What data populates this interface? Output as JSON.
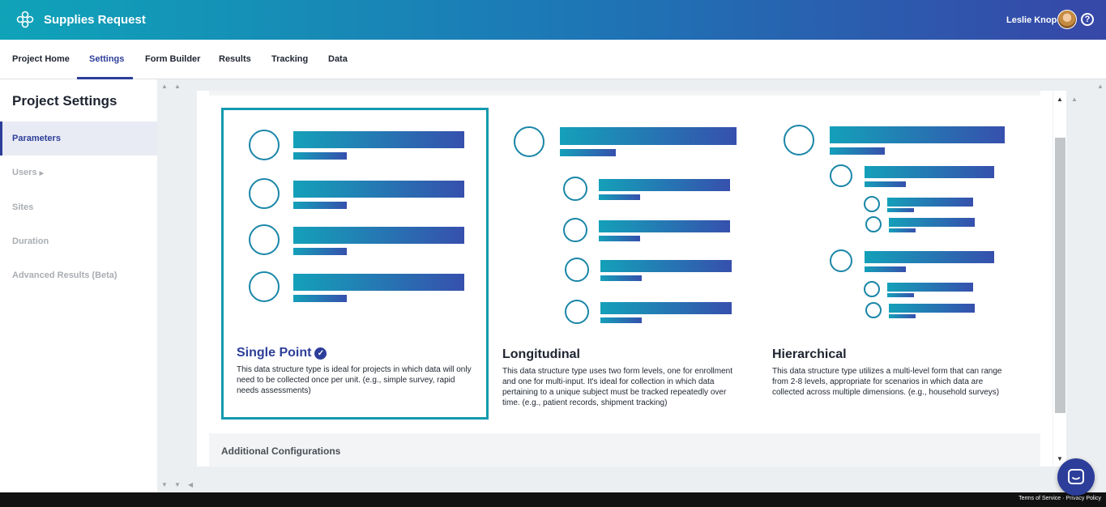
{
  "header": {
    "app_title": "Supplies Request",
    "user_name": "Leslie Knope",
    "help_glyph": "?"
  },
  "nav": {
    "tabs": [
      {
        "label": "Project Home"
      },
      {
        "label": "Settings",
        "active": true
      },
      {
        "label": "Form Builder"
      },
      {
        "label": "Results"
      },
      {
        "label": "Tracking"
      },
      {
        "label": "Data"
      }
    ]
  },
  "sidebar": {
    "title": "Project Settings",
    "items": [
      {
        "label": "Parameters",
        "active": true
      },
      {
        "label": "Users",
        "has_submenu": true
      },
      {
        "label": "Sites"
      },
      {
        "label": "Duration"
      },
      {
        "label": "Advanced Results (Beta)"
      }
    ]
  },
  "structures": [
    {
      "title": "Single Point",
      "selected": true,
      "description": "This data structure type is ideal for projects in which data will only need to be collected once per unit. (e.g., simple survey, rapid needs assessments)"
    },
    {
      "title": "Longitudinal",
      "selected": false,
      "description": "This data structure type uses two form levels, one for enrollment and one for multi-input. It's ideal for collection in which data pertaining to a unique subject must be tracked repeatedly over time. (e.g., patient records, shipment tracking)"
    },
    {
      "title": "Hierarchical",
      "selected": false,
      "description": "This data structure type utilizes a multi-level form that can range from 2-8 levels, appropriate for scenarios in which data are collected across multiple dimensions. (e.g., household surveys)"
    }
  ],
  "additional": {
    "label": "Additional Configurations"
  },
  "footer": {
    "terms": "Terms of Service",
    "privacy": "Privacy Policy"
  },
  "colors": {
    "accent": "#2c3e99",
    "teal": "#139aae",
    "header_start": "#0fa3b8",
    "header_end": "#3747a8"
  },
  "icons": {
    "logo": "flower-logo-icon",
    "check": "check-circle-icon",
    "chat": "chat-bubble-icon"
  }
}
